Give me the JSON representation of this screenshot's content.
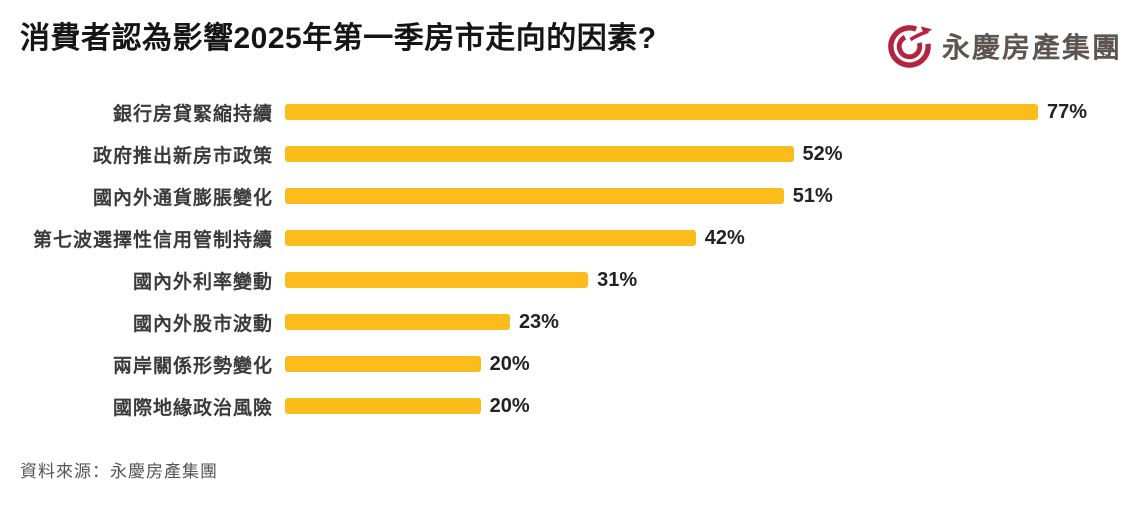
{
  "header": {
    "title": "消費者認為影響2025年第一季房市走向的因素?",
    "logo_text": "永慶房產集團",
    "logo_icon": "yungching-g-swoosh-emblem",
    "logo_icon_color": "#b3243e",
    "logo_text_color": "#5d554f"
  },
  "chart_data": {
    "type": "bar",
    "orientation": "horizontal",
    "categories": [
      "銀行房貸緊縮持續",
      "政府推出新房市政策",
      "國內外通貨膨脹變化",
      "第七波選擇性信用管制持續",
      "國內外利率變動",
      "國內外股市波動",
      "兩岸關係形勢變化",
      "國際地緣政治風險"
    ],
    "values": [
      77,
      52,
      51,
      42,
      31,
      23,
      20,
      20
    ],
    "unit": "%",
    "value_labels": [
      "77%",
      "52%",
      "51%",
      "42%",
      "31%",
      "23%",
      "20%",
      "20%"
    ],
    "bar_color": "#fbbc1c",
    "xlim": [
      0,
      80
    ],
    "grid": false,
    "legend": false,
    "title": "消費者認為影響2025年第一季房市走向的因素?",
    "xlabel": "",
    "ylabel": ""
  },
  "footer": {
    "source": "資料來源：永慶房產集團"
  }
}
